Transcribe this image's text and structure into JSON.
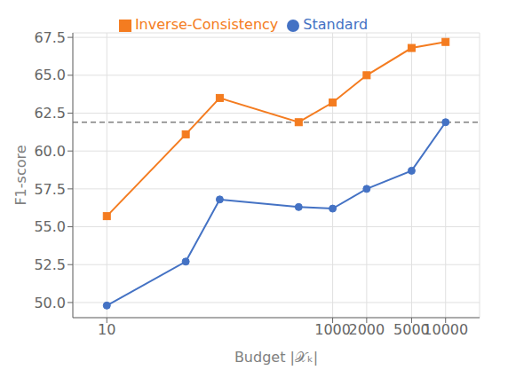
{
  "chart_data": {
    "type": "line",
    "xlabel": "Budget |𝒳ₖ|",
    "ylabel": "F1-score",
    "x": [
      10,
      50,
      100,
      500,
      1000,
      2000,
      5000,
      10000
    ],
    "series": [
      {
        "name": "Standard",
        "color": "#4472c4",
        "marker": "circle",
        "values": [
          49.8,
          52.7,
          56.8,
          56.3,
          56.2,
          57.5,
          58.7,
          61.9
        ]
      },
      {
        "name": "Inverse-Consistency",
        "color": "#f47c20",
        "marker": "square",
        "values": [
          55.7,
          61.1,
          63.5,
          61.9,
          63.2,
          65.0,
          66.8,
          67.2
        ]
      }
    ],
    "reference_line": {
      "y": 61.9,
      "color": "gray",
      "line_style": "dashed"
    },
    "log": "x",
    "xlim": [
      5,
      20000
    ],
    "xticks": [
      10,
      1000,
      2000,
      5000,
      10000
    ],
    "ylim": [
      49.0,
      67.8
    ],
    "yticks": [
      {
        "value": 50.0,
        "label": "50.0"
      },
      52.5,
      {
        "value": 55.0,
        "label": "55.0"
      },
      57.5,
      {
        "value": 60.0,
        "label": "60.0"
      },
      62.5,
      {
        "value": 65.0,
        "label": "65.0"
      },
      67.5
    ],
    "grid": true,
    "legend": "top"
  }
}
